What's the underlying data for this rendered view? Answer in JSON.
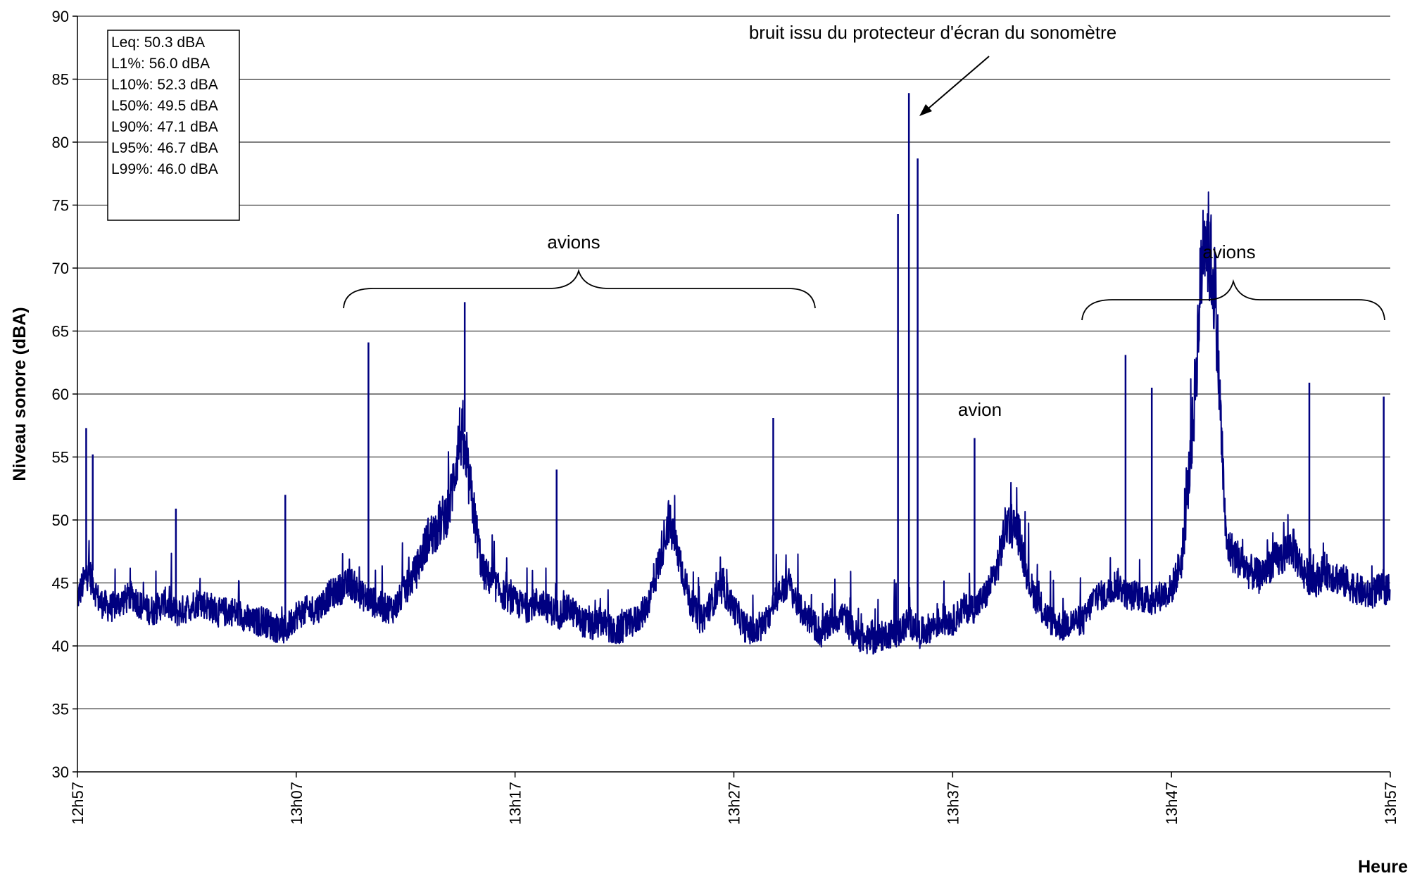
{
  "chart_data": {
    "type": "line",
    "title": "",
    "xlabel": "Heure",
    "ylabel": "Niveau sonore (dBA)",
    "ylim": [
      30,
      90
    ],
    "yticks": [
      "30",
      "35",
      "40",
      "45",
      "50",
      "55",
      "60",
      "65",
      "70",
      "75",
      "80",
      "85",
      "90"
    ],
    "xlim_minutes": [
      0,
      60
    ],
    "xticks": [
      "12h57",
      "13h07",
      "13h17",
      "13h27",
      "13h37",
      "13h47",
      "13h57"
    ],
    "grid": "horizontal",
    "line_color": "#000080",
    "legend": "",
    "stats_box": [
      "Leq: 50.3 dBA",
      "L1%: 56.0 dBA",
      "L10%: 52.3 dBA",
      "L50%: 49.5 dBA",
      "L90%: 47.1 dBA",
      "L95%: 46.7 dBA",
      "L99%: 46.0 dBA"
    ],
    "annotations": {
      "screen_saver": "bruit issu du protecteur d'écran du sonomètre",
      "planes_1": "avions",
      "plane": "avion",
      "planes_2": "avions"
    },
    "series": [
      {
        "x": [
          0,
          0.5,
          1,
          1.5,
          2,
          2.5,
          3,
          3.5,
          4,
          4.5,
          5,
          5.5,
          6,
          6.5,
          7,
          7.5,
          8,
          8.5,
          9,
          9.5,
          10,
          10.5,
          11,
          11.5,
          12,
          12.5,
          13,
          13.5,
          14,
          14.5,
          15,
          15.5,
          16,
          16.5,
          17,
          17.5,
          18,
          18.5,
          19,
          19.5,
          20,
          20.5,
          21,
          21.5,
          22,
          22.5,
          23,
          23.5,
          24,
          24.5,
          25,
          25.5,
          26,
          26.5,
          27,
          27.5,
          28,
          28.5,
          29,
          29.5,
          30,
          30.5,
          31,
          31.5,
          32,
          32.5,
          33,
          33.5,
          34,
          34.5,
          35,
          35.5,
          36,
          36.5,
          37,
          37.5,
          38,
          38.5,
          39,
          39.5,
          40,
          40.5,
          41,
          41.5,
          42,
          42.5,
          43,
          43.5,
          44,
          44.5,
          45,
          45.5,
          46,
          46.5,
          47,
          47.5,
          48,
          48.5,
          49,
          49.5,
          50,
          50.5,
          51,
          51.5,
          52,
          52.5,
          53,
          53.5,
          54,
          54.5,
          55,
          55.5,
          56,
          56.5,
          57,
          57.5,
          58,
          58.5,
          59,
          59.5,
          60
        ],
        "y": [
          43.8,
          46.0,
          43.5,
          43.0,
          43.5,
          44.0,
          43.0,
          42.8,
          43.5,
          42.6,
          43.0,
          43.5,
          43.2,
          42.6,
          42.8,
          42.5,
          41.8,
          42.0,
          41.5,
          41.2,
          42.5,
          42.8,
          43.0,
          44.0,
          44.5,
          45.0,
          44.0,
          43.5,
          43.0,
          43.0,
          44.5,
          46.0,
          48.5,
          49.5,
          51.0,
          57.0,
          52.0,
          46.0,
          45.0,
          44.0,
          43.5,
          43.0,
          43.5,
          43.0,
          42.5,
          43.0,
          42.0,
          41.5,
          42.0,
          41.0,
          41.5,
          42.0,
          43.0,
          46.0,
          50.0,
          47.0,
          43.5,
          42.0,
          43.5,
          44.5,
          43.0,
          41.5,
          41.0,
          42.0,
          44.0,
          45.0,
          43.0,
          42.0,
          41.0,
          42.0,
          42.5,
          41.0,
          40.5,
          40.5,
          41.0,
          41.0,
          42.0,
          41.0,
          41.5,
          42.0,
          42.0,
          43.0,
          43.0,
          44.0,
          46.0,
          50.0,
          49.0,
          45.0,
          43.0,
          42.0,
          41.5,
          42.0,
          42.0,
          44.0,
          44.0,
          45.0,
          44.0,
          44.0,
          43.5,
          44.0,
          44.5,
          47.0,
          58.0,
          74.0,
          68.0,
          48.0,
          47.0,
          46.0,
          45.5,
          46.5,
          47.0,
          48.0,
          46.0,
          45.0,
          46.0,
          45.5,
          45.0,
          44.5,
          44.0,
          44.5,
          44.5
        ],
        "peaks": [
          {
            "x": 0.4,
            "y": 57.3
          },
          {
            "x": 0.7,
            "y": 55.2
          },
          {
            "x": 4.5,
            "y": 50.9
          },
          {
            "x": 9.5,
            "y": 52.0
          },
          {
            "x": 13.3,
            "y": 64.1
          },
          {
            "x": 17.7,
            "y": 67.3
          },
          {
            "x": 21.9,
            "y": 54.0
          },
          {
            "x": 31.8,
            "y": 58.1
          },
          {
            "x": 37.5,
            "y": 74.3
          },
          {
            "x": 38.0,
            "y": 83.9
          },
          {
            "x": 38.4,
            "y": 78.7
          },
          {
            "x": 41.0,
            "y": 56.5
          },
          {
            "x": 47.9,
            "y": 63.1
          },
          {
            "x": 49.1,
            "y": 60.5
          },
          {
            "x": 56.3,
            "y": 60.9
          },
          {
            "x": 59.7,
            "y": 59.8
          }
        ]
      }
    ]
  }
}
